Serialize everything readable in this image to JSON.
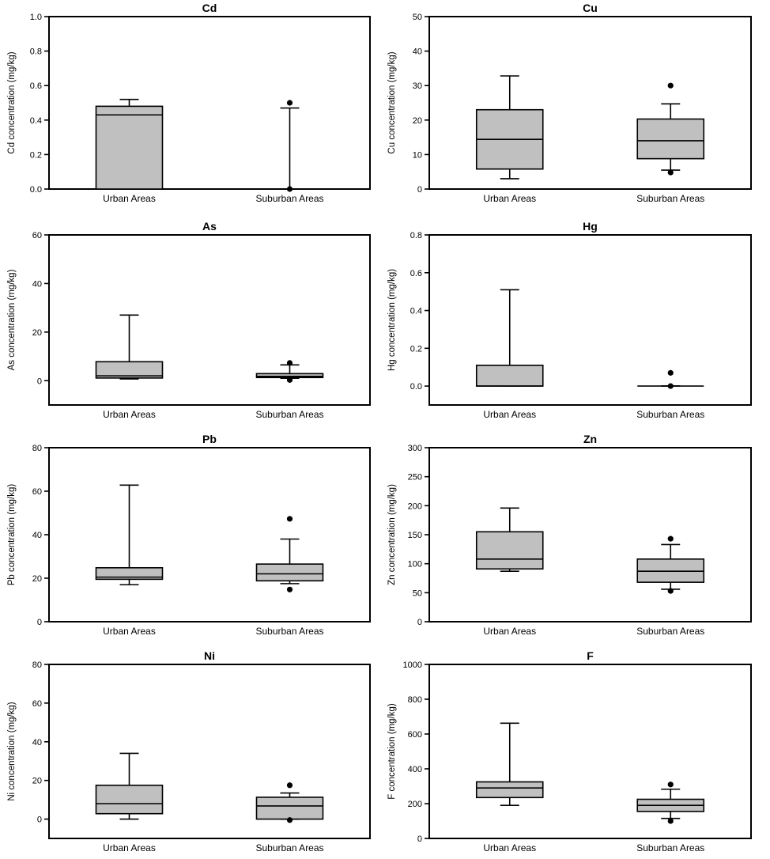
{
  "chart_data": [
    {
      "type": "box",
      "title": "Cd",
      "ylabel": "Cd concentration (mg/kg)",
      "ylim": [
        0,
        1.0
      ],
      "yticks": [
        "0.0",
        "0.2",
        "0.4",
        "0.6",
        "0.8",
        "1.0"
      ],
      "categories": [
        "Urban Areas",
        "Suburban Areas"
      ],
      "boxes": [
        {
          "category": "Urban Areas",
          "whisker_low": 0,
          "q1": 0,
          "median": 0.43,
          "q3": 0.48,
          "whisker_high": 0.52,
          "outliers": []
        },
        {
          "category": "Suburban Areas",
          "whisker_low": 0,
          "q1": 0,
          "median": 0,
          "q3": 0,
          "whisker_high": 0.47,
          "outliers": [
            0.5,
            0
          ]
        }
      ]
    },
    {
      "type": "box",
      "title": "Cu",
      "ylabel": "Cu concentration (mg/kg)",
      "ylim": [
        0,
        50
      ],
      "yticks": [
        "0",
        "10",
        "20",
        "30",
        "40",
        "50"
      ],
      "categories": [
        "Urban Areas",
        "Suburban Areas"
      ],
      "boxes": [
        {
          "category": "Urban Areas",
          "whisker_low": 3,
          "q1": 5.8,
          "median": 14.4,
          "q3": 23,
          "whisker_high": 32.8,
          "outliers": []
        },
        {
          "category": "Suburban Areas",
          "whisker_low": 5.5,
          "q1": 8.8,
          "median": 14,
          "q3": 20.3,
          "whisker_high": 24.7,
          "outliers": [
            30,
            4.8
          ]
        }
      ]
    },
    {
      "type": "box",
      "title": "As",
      "ylabel": "As concentration (mg/kg)",
      "ylim": [
        -10,
        60
      ],
      "yticks": [
        "0",
        "20",
        "40",
        "60"
      ],
      "categories": [
        "Urban Areas",
        "Suburban Areas"
      ],
      "boxes": [
        {
          "category": "Urban Areas",
          "whisker_low": 0.7,
          "q1": 1.1,
          "median": 2.0,
          "q3": 7.8,
          "whisker_high": 27,
          "outliers": []
        },
        {
          "category": "Suburban Areas",
          "whisker_low": 1.0,
          "q1": 1.3,
          "median": 1.8,
          "q3": 2.9,
          "whisker_high": 6.5,
          "outliers": [
            7.3,
            0.3
          ]
        }
      ]
    },
    {
      "type": "box",
      "title": "Hg",
      "ylabel": "Hg concentration (mg/kg)",
      "ylim": [
        -0.1,
        0.8
      ],
      "yticks": [
        "0.0",
        "0.2",
        "0.4",
        "0.6",
        "0.8"
      ],
      "categories": [
        "Urban Areas",
        "Suburban Areas"
      ],
      "boxes": [
        {
          "category": "Urban Areas",
          "whisker_low": 0,
          "q1": 0,
          "median": 0,
          "q3": 0.11,
          "whisker_high": 0.51,
          "outliers": []
        },
        {
          "category": "Suburban Areas",
          "whisker_low": 0,
          "q1": 0,
          "median": 0,
          "q3": 0,
          "whisker_high": 0,
          "outliers": [
            0.07,
            0
          ]
        }
      ]
    },
    {
      "type": "box",
      "title": "Pb",
      "ylabel": "Pb concentration (mg/kg)",
      "ylim": [
        0,
        80
      ],
      "yticks": [
        "0",
        "20",
        "40",
        "60",
        "80"
      ],
      "categories": [
        "Urban Areas",
        "Suburban Areas"
      ],
      "boxes": [
        {
          "category": "Urban Areas",
          "whisker_low": 17,
          "q1": 19.5,
          "median": 20.5,
          "q3": 24.8,
          "whisker_high": 62.8,
          "outliers": []
        },
        {
          "category": "Suburban Areas",
          "whisker_low": 17.5,
          "q1": 18.8,
          "median": 22,
          "q3": 26.5,
          "whisker_high": 38,
          "outliers": [
            47.3,
            14.8
          ]
        }
      ]
    },
    {
      "type": "box",
      "title": "Zn",
      "ylabel": "Zn concentration (mg/kg)",
      "ylim": [
        0,
        300
      ],
      "yticks": [
        "0",
        "50",
        "100",
        "150",
        "200",
        "250",
        "300"
      ],
      "categories": [
        "Urban Areas",
        "Suburban Areas"
      ],
      "boxes": [
        {
          "category": "Urban Areas",
          "whisker_low": 87,
          "q1": 91,
          "median": 108,
          "q3": 155,
          "whisker_high": 196,
          "outliers": []
        },
        {
          "category": "Suburban Areas",
          "whisker_low": 56,
          "q1": 68,
          "median": 87,
          "q3": 108,
          "whisker_high": 133,
          "outliers": [
            143,
            53
          ]
        }
      ]
    },
    {
      "type": "box",
      "title": "Ni",
      "ylabel": "Ni concentration (mg/kg)",
      "ylim": [
        -10,
        80
      ],
      "yticks": [
        "0",
        "20",
        "40",
        "60",
        "80"
      ],
      "categories": [
        "Urban Areas",
        "Suburban Areas"
      ],
      "boxes": [
        {
          "category": "Urban Areas",
          "whisker_low": 0,
          "q1": 2.8,
          "median": 8,
          "q3": 17.5,
          "whisker_high": 34,
          "outliers": []
        },
        {
          "category": "Suburban Areas",
          "whisker_low": 0,
          "q1": 0,
          "median": 6.8,
          "q3": 11.3,
          "whisker_high": 13.5,
          "outliers": [
            17.5,
            -0.5
          ]
        }
      ]
    },
    {
      "type": "box",
      "title": "F",
      "ylabel": "F concentration (mg/kg)",
      "ylim": [
        0,
        1000
      ],
      "yticks": [
        "0",
        "200",
        "400",
        "600",
        "800",
        "1000"
      ],
      "categories": [
        "Urban Areas",
        "Suburban Areas"
      ],
      "boxes": [
        {
          "category": "Urban Areas",
          "whisker_low": 190,
          "q1": 235,
          "median": 290,
          "q3": 325,
          "whisker_high": 662,
          "outliers": []
        },
        {
          "category": "Suburban Areas",
          "whisker_low": 115,
          "q1": 155,
          "median": 190,
          "q3": 225,
          "whisker_high": 283,
          "outliers": [
            310,
            100
          ]
        }
      ]
    }
  ]
}
